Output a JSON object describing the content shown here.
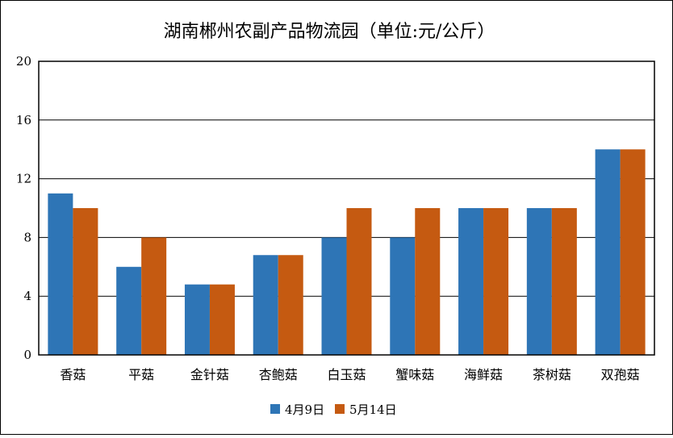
{
  "chart_data": {
    "type": "bar",
    "title": "湖南郴州农副产品物流园（单位:元/公斤）",
    "categories": [
      "香菇",
      "平菇",
      "金针菇",
      "杏鲍菇",
      "白玉菇",
      "蟹味菇",
      "海鲜菇",
      "茶树菇",
      "双孢菇"
    ],
    "series": [
      {
        "name": "4月9日",
        "color": "#2E75B6",
        "values": [
          11,
          6,
          4.8,
          6.8,
          8,
          8,
          10,
          10,
          14
        ]
      },
      {
        "name": "5月14日",
        "color": "#C55A11",
        "values": [
          10,
          8,
          4.8,
          6.8,
          10,
          10,
          10,
          10,
          14
        ]
      }
    ],
    "ylim": [
      0,
      20
    ],
    "yticks": [
      0,
      4,
      8,
      12,
      16,
      20
    ],
    "grid": true,
    "legend_position": "bottom-center"
  }
}
